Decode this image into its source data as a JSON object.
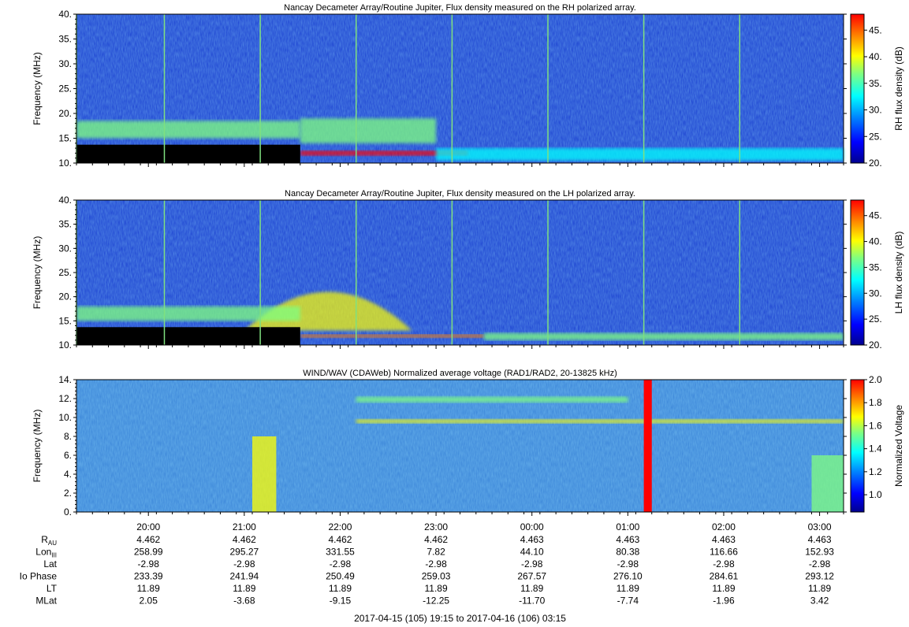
{
  "chart_data": [
    {
      "type": "heatmap",
      "title": "Nancay Decameter Array/Routine Jupiter,  Flux density measured on the RH polarized array.",
      "ylabel": "Frequency (MHz)",
      "ylim": [
        10,
        40
      ],
      "yticks": [
        "10.",
        "15.",
        "20.",
        "25.",
        "30.",
        "35.",
        "40."
      ],
      "colorbar": {
        "label": "RH flux density (dB)",
        "range": [
          20,
          48
        ],
        "ticks": [
          "20.",
          "25.",
          "30.",
          "35.",
          "40.",
          "45."
        ]
      },
      "colormap": [
        "#00008f",
        "#0000ff",
        "#0080ff",
        "#00ffff",
        "#80ff80",
        "#ffff00",
        "#ff8000",
        "#ff0000"
      ],
      "background_color": "#1a3fd0",
      "masked_region": {
        "x": [
          "19:15",
          "21:35"
        ],
        "y": [
          10,
          13.7
        ],
        "color": "#000000"
      },
      "vertical_lines": [
        "19:15",
        "20:10",
        "21:10",
        "22:10",
        "23:10",
        "00:10",
        "01:10",
        "02:10"
      ],
      "features": [
        {
          "name": "band",
          "x": [
            "19:15",
            "21:35"
          ],
          "y": [
            15,
            18.5
          ],
          "level": 0.6
        },
        {
          "name": "band",
          "x": [
            "21:35",
            "23:20"
          ],
          "y": [
            11.5,
            12.5
          ],
          "level": 0.95
        },
        {
          "name": "band",
          "x": [
            "21:35",
            "23:00"
          ],
          "y": [
            14,
            19
          ],
          "level": 0.55
        },
        {
          "name": "band",
          "x": [
            "23:00",
            "03:15"
          ],
          "y": [
            10.5,
            13
          ],
          "level": 0.45
        }
      ]
    },
    {
      "type": "heatmap",
      "title": "Nancay Decameter Array/Routine Jupiter,  Flux density measured on the LH polarized array.",
      "ylabel": "Frequency (MHz)",
      "ylim": [
        10,
        40
      ],
      "yticks": [
        "10.",
        "15.",
        "20.",
        "25.",
        "30.",
        "35.",
        "40."
      ],
      "colorbar": {
        "label": "LH flux density (dB)",
        "range": [
          20,
          48
        ],
        "ticks": [
          "20.",
          "25.",
          "30.",
          "35.",
          "40.",
          "45."
        ]
      },
      "colormap": [
        "#00008f",
        "#0000ff",
        "#0080ff",
        "#00ffff",
        "#80ff80",
        "#ffff00",
        "#ff8000",
        "#ff0000"
      ],
      "background_color": "#1a3fd0",
      "masked_region": {
        "x": [
          "19:15",
          "21:35"
        ],
        "y": [
          10,
          13.7
        ],
        "color": "#000000"
      },
      "vertical_lines": [
        "19:15",
        "20:10",
        "21:10",
        "22:10",
        "23:10",
        "00:10",
        "01:10",
        "02:10"
      ],
      "features": [
        {
          "name": "arc",
          "x": [
            "21:00",
            "22:45"
          ],
          "y": [
            13,
            23
          ],
          "level": 0.65
        },
        {
          "name": "band",
          "x": [
            "19:15",
            "21:35"
          ],
          "y": [
            15,
            18
          ],
          "level": 0.55
        },
        {
          "name": "band",
          "x": [
            "21:35",
            "23:30"
          ],
          "y": [
            11.5,
            12.2
          ],
          "level": 0.9
        },
        {
          "name": "band",
          "x": [
            "23:30",
            "03:15"
          ],
          "y": [
            11,
            12.5
          ],
          "level": 0.5
        }
      ]
    },
    {
      "type": "heatmap",
      "title": "WIND/WAV (CDAWeb) Normalized average voltage (RAD1/RAD2, 20-13825 kHz)",
      "ylabel": "Frequency (MHz)",
      "ylim": [
        0,
        14
      ],
      "yticks": [
        "0.",
        "2.",
        "4.",
        "6.",
        "8.",
        "10.",
        "12.",
        "14."
      ],
      "colorbar": {
        "label": "Normalized Voltage",
        "range": [
          0.85,
          2.0
        ],
        "ticks": [
          "1.0",
          "1.2",
          "1.4",
          "1.6",
          "1.8",
          "2.0"
        ]
      },
      "colormap": [
        "#00008f",
        "#0000ff",
        "#0080ff",
        "#00ffff",
        "#80ff80",
        "#ffff00",
        "#ff8000",
        "#ff0000"
      ],
      "background_color": "#3a84d8",
      "features": [
        {
          "name": "band",
          "x": [
            "22:10",
            "03:15"
          ],
          "y": [
            9.4,
            9.8
          ],
          "level": 0.7
        },
        {
          "name": "band",
          "x": [
            "22:10",
            "01:00"
          ],
          "y": [
            11.6,
            12.2
          ],
          "level": 0.6
        },
        {
          "name": "burst",
          "x": [
            "01:10",
            "01:15"
          ],
          "y": [
            0,
            14
          ],
          "level": 1.0
        },
        {
          "name": "burst",
          "x": [
            "21:05",
            "21:20"
          ],
          "y": [
            0,
            8
          ],
          "level": 0.65
        },
        {
          "name": "burst",
          "x": [
            "02:55",
            "03:15"
          ],
          "y": [
            0,
            6
          ],
          "level": 0.6
        }
      ]
    }
  ],
  "x_axis": {
    "range": [
      "19:15",
      "03:15"
    ],
    "ticks": [
      "20:00",
      "21:00",
      "22:00",
      "23:00",
      "00:00",
      "01:00",
      "02:00",
      "03:00"
    ],
    "caption": "2017-04-15 (105) 19:15 to 2017-04-16 (106) 03:15"
  },
  "ephemeris": [
    {
      "label": "R",
      "sub": "AU",
      "values": [
        "4.462",
        "4.462",
        "4.462",
        "4.462",
        "4.463",
        "4.463",
        "4.463",
        "4.463"
      ]
    },
    {
      "label": "Lon",
      "sub": "III",
      "values": [
        "258.99",
        "295.27",
        "331.55",
        "7.82",
        "44.10",
        "80.38",
        "116.66",
        "152.93"
      ]
    },
    {
      "label": "Lat",
      "sub": "",
      "values": [
        "-2.98",
        "-2.98",
        "-2.98",
        "-2.98",
        "-2.98",
        "-2.98",
        "-2.98",
        "-2.98"
      ]
    },
    {
      "label": "Io Phase",
      "sub": "",
      "values": [
        "233.39",
        "241.94",
        "250.49",
        "259.03",
        "267.57",
        "276.10",
        "284.61",
        "293.12"
      ]
    },
    {
      "label": "LT",
      "sub": "",
      "values": [
        "11.89",
        "11.89",
        "11.89",
        "11.89",
        "11.89",
        "11.89",
        "11.89",
        "11.89"
      ]
    },
    {
      "label": "MLat",
      "sub": "",
      "values": [
        "2.05",
        "-3.68",
        "-9.15",
        "-12.25",
        "-11.70",
        "-7.74",
        "-1.96",
        "3.42"
      ]
    }
  ]
}
